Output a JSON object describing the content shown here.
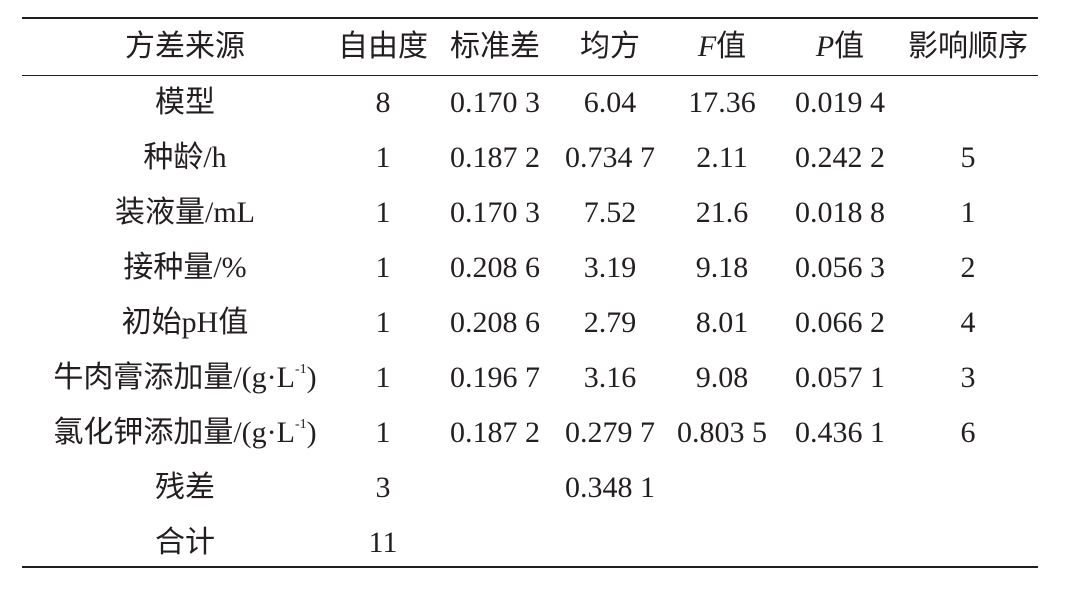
{
  "table": {
    "header": [
      "方差来源",
      "自由度",
      "标准差",
      "均方",
      {
        "italic": "F",
        "rest": "值"
      },
      {
        "italic": "P",
        "rest": "值"
      },
      "影响顺序"
    ],
    "rows": [
      [
        "模型",
        "8",
        "0.170 3",
        "6.04",
        "17.36",
        "0.019 4",
        ""
      ],
      [
        "种龄/h",
        "1",
        "0.187 2",
        "0.734 7",
        "2.11",
        "0.242 2",
        "5"
      ],
      [
        "装液量/mL",
        "1",
        "0.170 3",
        "7.52",
        "21.6",
        "0.018 8",
        "1"
      ],
      [
        "接种量/%",
        "1",
        "0.208 6",
        "3.19",
        "9.18",
        "0.056 3",
        "2"
      ],
      [
        "初始pH值",
        "1",
        "0.208 6",
        "2.79",
        "8.01",
        "0.066 2",
        "4"
      ],
      [
        {
          "pre": "牛肉膏添加量/(g·L",
          "sup": "-1",
          "post": ")"
        },
        "1",
        "0.196 7",
        "3.16",
        "9.08",
        "0.057 1",
        "3"
      ],
      [
        {
          "pre": "氯化钾添加量/(g·L",
          "sup": "-1",
          "post": ")"
        },
        "1",
        "0.187 2",
        "0.279 7",
        "0.803 5",
        "0.436 1",
        "6"
      ],
      [
        "残差",
        "3",
        "",
        "0.348 1",
        "",
        "",
        ""
      ],
      [
        "合计",
        "11",
        "",
        "",
        "",
        "",
        ""
      ]
    ]
  }
}
